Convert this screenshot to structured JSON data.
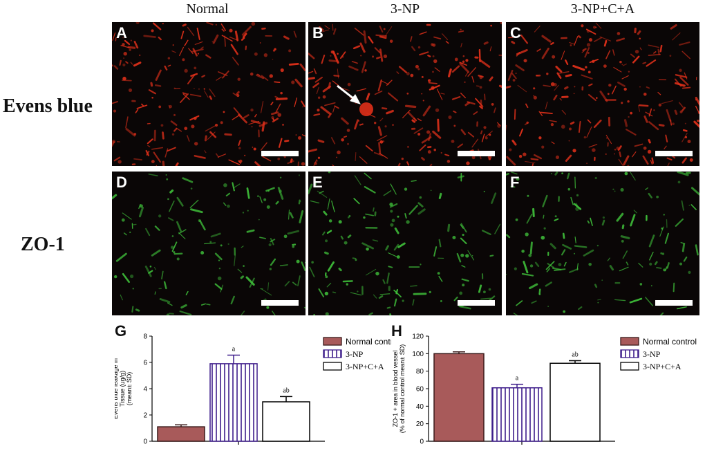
{
  "columns": [
    "Normal",
    "3-NP",
    "3-NP+C+A"
  ],
  "rows": [
    "Evens blue",
    "ZO-1"
  ],
  "panels": [
    {
      "label": "A",
      "stain": "red"
    },
    {
      "label": "B",
      "stain": "red",
      "arrow": true
    },
    {
      "label": "C",
      "stain": "red"
    },
    {
      "label": "D",
      "stain": "green"
    },
    {
      "label": "E",
      "stain": "green"
    },
    {
      "label": "F",
      "stain": "green"
    }
  ],
  "colors": {
    "normal": "#a85a5a",
    "np_stroke": "#3d1c8a",
    "white": "#ffffff",
    "red_stain": "#e0301a",
    "green_stain": "#3fbf3a"
  },
  "chart_data": [
    {
      "label": "G",
      "type": "bar",
      "ylabel": "Evens blue leakage in Tissue (ug/g) (mean± SD)",
      "ylim": [
        0,
        8
      ],
      "yticks": [
        0,
        2,
        4,
        6,
        8
      ],
      "categories": [
        "Normal control",
        "3-NP",
        "3-NP+C+A"
      ],
      "values": [
        1.1,
        5.9,
        3.0
      ],
      "errors": [
        0.15,
        0.65,
        0.4
      ],
      "annotations": [
        "",
        "a",
        "ab"
      ],
      "legend": [
        "Normal control",
        "3-NP",
        "3-NP+C+A"
      ],
      "legend_position": "right"
    },
    {
      "label": "H",
      "type": "bar",
      "ylabel": "ZO-1 + area in blood vessel (% of normal control mean± SD)",
      "ylim": [
        0,
        120
      ],
      "yticks": [
        0,
        20,
        40,
        60,
        80,
        100,
        120
      ],
      "categories": [
        "Normal control",
        "3-NP",
        "3-NP+C+A"
      ],
      "values": [
        100,
        61,
        89
      ],
      "errors": [
        2,
        4,
        3
      ],
      "annotations": [
        "",
        "a",
        "ab"
      ],
      "legend": [
        "Normal control",
        "3-NP",
        "3-NP+C+A"
      ],
      "legend_position": "right"
    }
  ]
}
